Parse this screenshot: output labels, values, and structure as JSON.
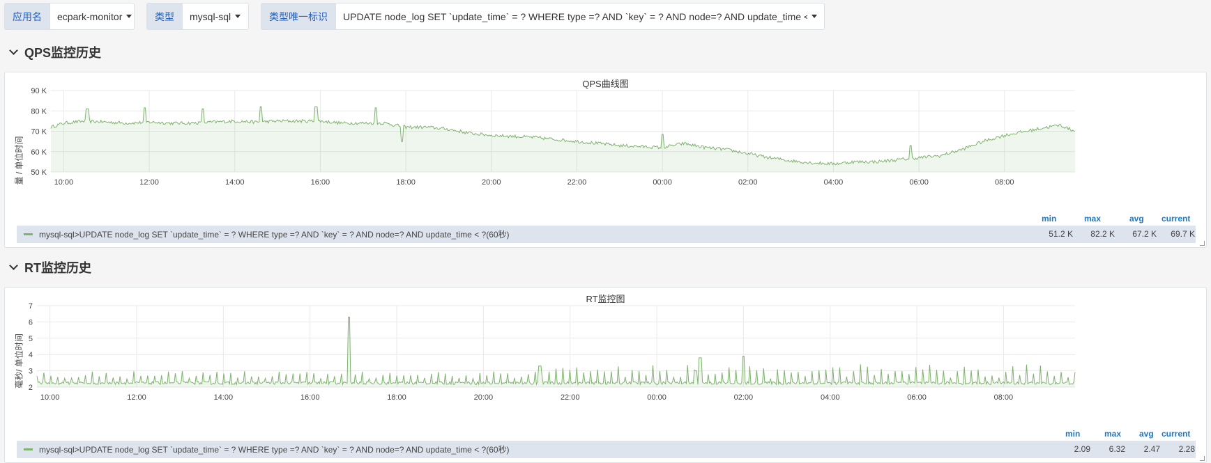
{
  "variables": [
    {
      "label": "应用名",
      "value": "ecpark-monitor"
    },
    {
      "label": "类型",
      "value": "mysql-sql"
    },
    {
      "label": "类型唯一标识",
      "value": "UPDATE node_log SET `update_time` = ? WHERE type =? AND `key` = ? AND node=? AND update_time < ?"
    }
  ],
  "rows": {
    "qps": "QPS监控历史",
    "rt": "RT监控历史"
  },
  "legend_headers": {
    "min": "min",
    "max": "max",
    "avg": "avg",
    "current": "current"
  },
  "icons": {
    "row_toggle": "chevron-down-icon",
    "var_dropdown": "caret-down-icon",
    "resize": "resize-handle-icon"
  },
  "colors": {
    "series": "#7eb26d",
    "label_blue": "#1f60c4",
    "legend_blue": "#1f78c1"
  },
  "chart_data": [
    {
      "type": "line",
      "title": "QPS曲线图",
      "ylabel": "量 / 单位时间",
      "xlabel": "",
      "ylim": [
        50,
        90
      ],
      "yticks": [
        50,
        60,
        70,
        80,
        90
      ],
      "ytick_labels": [
        "50 K",
        "60 K",
        "70 K",
        "80 K",
        "90 K"
      ],
      "x_ticks": [
        "10:00",
        "12:00",
        "14:00",
        "16:00",
        "18:00",
        "20:00",
        "22:00",
        "00:00",
        "02:00",
        "04:00",
        "06:00",
        "08:00"
      ],
      "x_range_hours": [
        9.7,
        33.65
      ],
      "x_hours": [
        9.7,
        10.0,
        10.5,
        11.0,
        11.5,
        12.0,
        12.5,
        13.0,
        13.5,
        14.0,
        14.5,
        15.0,
        15.5,
        16.0,
        16.5,
        17.0,
        17.5,
        18.0,
        18.5,
        19.0,
        19.5,
        20.0,
        20.5,
        21.0,
        21.5,
        22.0,
        22.5,
        23.0,
        23.5,
        24.0,
        24.5,
        25.0,
        25.5,
        26.0,
        26.5,
        27.0,
        27.5,
        28.0,
        28.5,
        29.0,
        29.5,
        30.0,
        30.5,
        31.0,
        31.5,
        32.0,
        32.5,
        33.0,
        33.3,
        33.65
      ],
      "series": [
        {
          "name": "mysql-sql>UPDATE node_log SET `update_time` = ? WHERE type =? AND `key` = ? AND node=? AND update_time < ?(60秒)",
          "values": [
            72,
            74,
            75,
            74.5,
            74,
            74.5,
            74,
            74,
            74.5,
            75,
            74.5,
            75,
            75,
            75,
            74,
            74,
            74,
            72,
            72,
            71,
            69,
            68,
            67.5,
            67,
            66,
            65,
            64,
            63,
            62.5,
            62,
            64,
            62,
            61,
            59,
            57,
            55.5,
            54.5,
            54,
            55,
            55,
            56,
            57,
            58,
            61,
            65,
            68,
            70,
            72,
            73,
            70
          ],
          "spikes": [
            [
              10.55,
              81
            ],
            [
              11.9,
              81.5
            ],
            [
              13.25,
              81
            ],
            [
              14.6,
              82
            ],
            [
              15.9,
              82
            ],
            [
              17.3,
              81.5
            ],
            [
              17.9,
              65
            ],
            [
              24.0,
              68.5
            ],
            [
              29.8,
              63
            ]
          ]
        }
      ],
      "stats": {
        "min": "51.2 K",
        "max": "82.2 K",
        "avg": "67.2 K",
        "current": "69.7 K"
      }
    },
    {
      "type": "line",
      "title": "RT监控图",
      "ylabel": "毫秒/ 单位时间",
      "xlabel": "",
      "ylim": [
        2,
        7
      ],
      "yticks": [
        2,
        3,
        4,
        5,
        6,
        7
      ],
      "ytick_labels": [
        "2",
        "3",
        "4",
        "5",
        "6",
        "7"
      ],
      "x_ticks": [
        "10:00",
        "12:00",
        "14:00",
        "16:00",
        "18:00",
        "20:00",
        "22:00",
        "00:00",
        "02:00",
        "04:00",
        "06:00",
        "08:00"
      ],
      "x_range_hours": [
        9.7,
        33.65
      ],
      "baseline": 2.25,
      "series": [
        {
          "name": "mysql-sql>UPDATE node_log SET `update_time` = ? WHERE type =? AND `key` = ? AND node=? AND update_time < ?(60秒)",
          "spikes": [
            [
              16.9,
              6.3
            ],
            [
              26.0,
              3.9
            ],
            [
              25.0,
              3.8
            ],
            [
              21.3,
              3.3
            ],
            [
              24.9,
              3.0
            ]
          ]
        }
      ],
      "stats": {
        "min": "2.09",
        "max": "6.32",
        "avg": "2.47",
        "current": "2.28"
      }
    }
  ]
}
